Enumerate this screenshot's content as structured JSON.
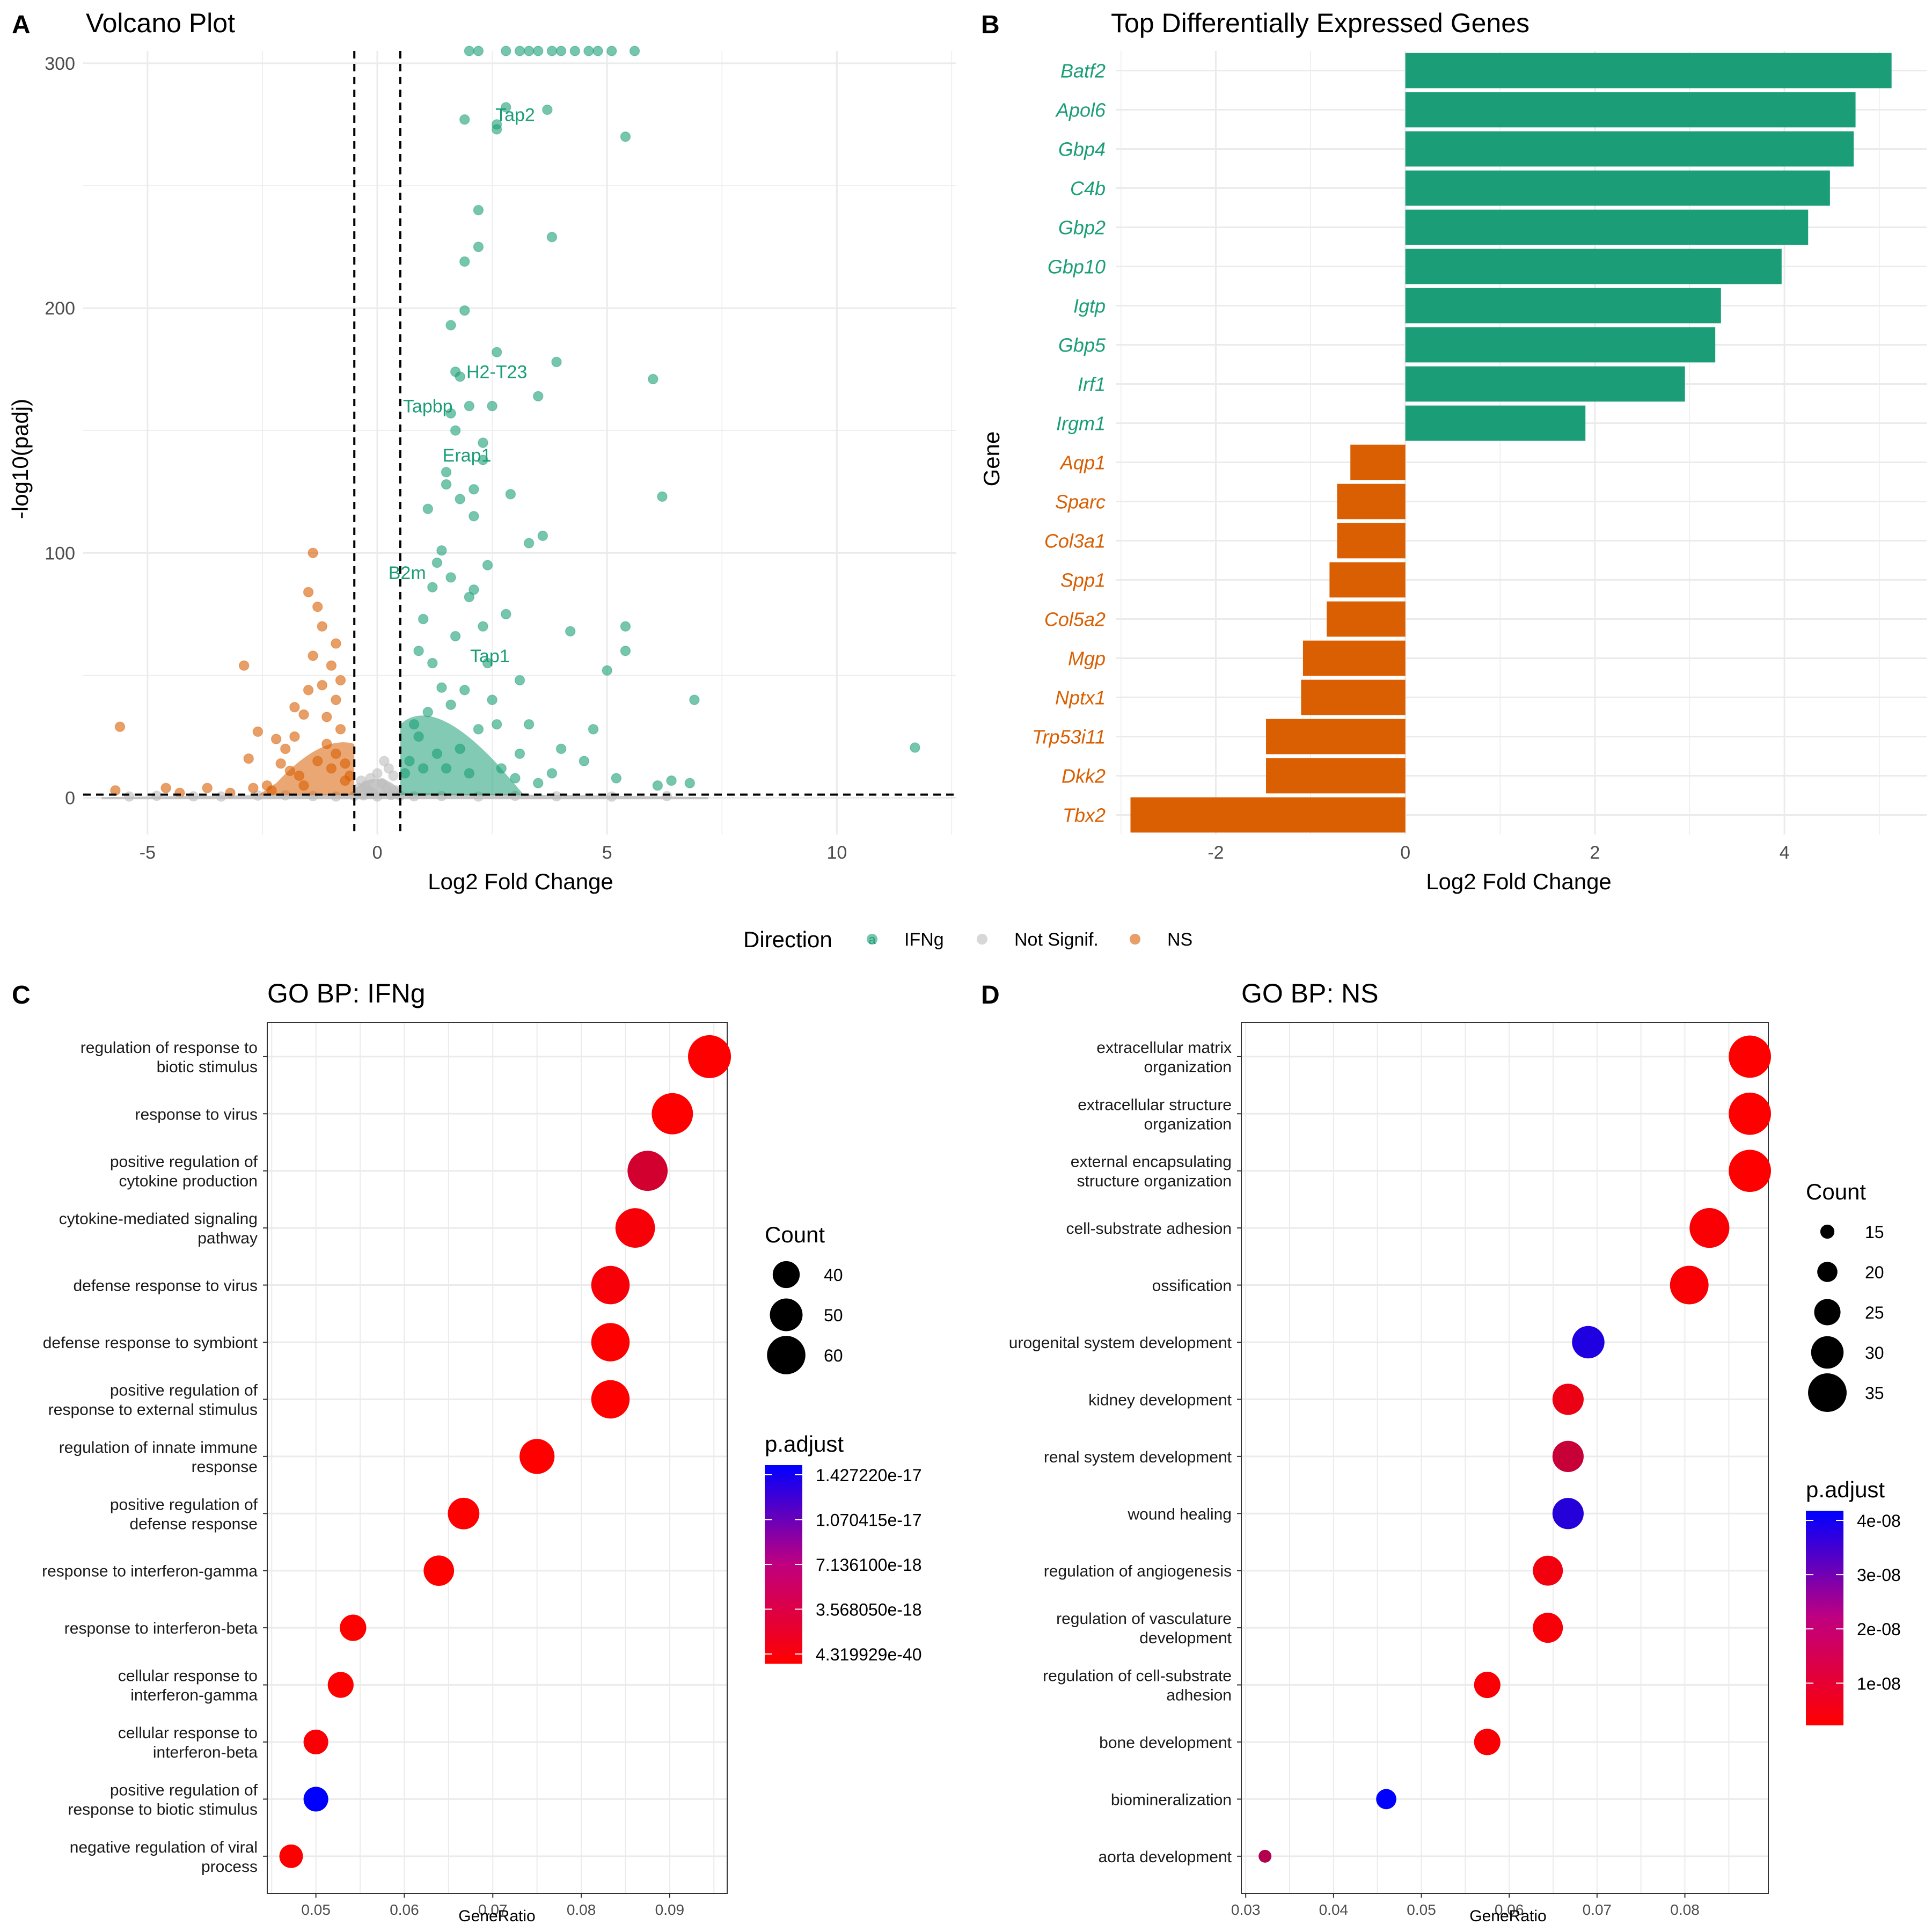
{
  "colors": {
    "ifng": "#1b9e77",
    "ns": "#d95f02",
    "not_signif": "#bdbdbd",
    "padj_low": "#ff0000",
    "padj_high": "#0000ff",
    "grid": "#ebebeb"
  },
  "panel_letters": [
    "A",
    "B",
    "C",
    "D"
  ],
  "legend_direction": {
    "title": "Direction",
    "entries": [
      {
        "label": "IFNg",
        "key_glyph": "a",
        "color": "#1b9e77"
      },
      {
        "label": "Not Signif.",
        "color": "#bdbdbd"
      },
      {
        "label": "NS",
        "color": "#d95f02"
      }
    ]
  },
  "chart_data": [
    {
      "type": "scatter",
      "title": "Volcano Plot",
      "xlabel": "Log2 Fold Change",
      "ylabel": "-log10(padj)",
      "xlim": [
        -6.4,
        12.6
      ],
      "ylim": [
        -15,
        305
      ],
      "x_ticks": [
        -5,
        0,
        5,
        10
      ],
      "y_ticks": [
        0,
        100,
        200,
        300
      ],
      "vlines": [
        -0.5,
        0.5
      ],
      "hline": 1.3,
      "grid": true,
      "series": [
        {
          "name": "IFNg",
          "points": [
            [
              11.7,
              20.5
            ],
            [
              6.9,
              40
            ],
            [
              6.2,
              123
            ],
            [
              6.0,
              171
            ],
            [
              5.4,
              270
            ],
            [
              5.4,
              60
            ],
            [
              5.4,
              70
            ],
            [
              5.0,
              52
            ],
            [
              4.2,
              68
            ],
            [
              3.9,
              178
            ],
            [
              3.8,
              229
            ],
            [
              3.7,
              281
            ],
            [
              3.6,
              107
            ],
            [
              3.5,
              164
            ],
            [
              3.3,
              104
            ],
            [
              3.1,
              48
            ],
            [
              2.9,
              124
            ],
            [
              2.8,
              282
            ],
            [
              2.6,
              275
            ],
            [
              2.6,
              273
            ],
            [
              2.6,
              182
            ],
            [
              2.5,
              160
            ],
            [
              2.4,
              95
            ],
            [
              2.3,
              145
            ],
            [
              2.2,
              225
            ],
            [
              2.2,
              240
            ],
            [
              2.1,
              126
            ],
            [
              2.0,
              82
            ],
            [
              1.9,
              277
            ],
            [
              1.9,
              219
            ],
            [
              1.9,
              199
            ],
            [
              1.8,
              122
            ],
            [
              1.7,
              174
            ],
            [
              1.6,
              193
            ],
            [
              1.6,
              157
            ],
            [
              1.5,
              133
            ],
            [
              1.4,
              101
            ],
            [
              1.3,
              96
            ],
            [
              1.2,
              86
            ],
            [
              1.1,
              118
            ],
            [
              1.0,
              73
            ],
            [
              0.9,
              60
            ],
            [
              1.8,
              172
            ],
            [
              2.0,
              160
            ],
            [
              2.3,
              138
            ],
            [
              1.7,
              150
            ],
            [
              2.1,
              115
            ],
            [
              1.5,
              128
            ],
            [
              2.3,
              70
            ],
            [
              2.8,
              75
            ],
            [
              3.3,
              30
            ],
            [
              4.0,
              20
            ],
            [
              4.5,
              15
            ],
            [
              4.7,
              28
            ],
            [
              5.2,
              8
            ],
            [
              6.1,
              5
            ],
            [
              6.4,
              7
            ],
            [
              6.8,
              6
            ],
            [
              3.0,
              8
            ],
            [
              3.5,
              6
            ],
            [
              2.7,
              12
            ],
            [
              1.2,
              55
            ],
            [
              1.4,
              45
            ],
            [
              1.6,
              38
            ],
            [
              1.1,
              35
            ],
            [
              0.8,
              30
            ],
            [
              0.9,
              25
            ],
            [
              1.3,
              18
            ],
            [
              1.5,
              12
            ],
            [
              1.8,
              20
            ],
            [
              2.0,
              10
            ],
            [
              2.2,
              28
            ],
            [
              2.5,
              40
            ],
            [
              0.7,
              15
            ],
            [
              0.6,
              10
            ],
            [
              1.0,
              12
            ],
            [
              1.9,
              44
            ],
            [
              2.4,
              55
            ],
            [
              2.6,
              30
            ],
            [
              3.1,
              18
            ],
            [
              3.8,
              10
            ],
            [
              1.7,
              66
            ],
            [
              2.1,
              85
            ],
            [
              1.6,
              90
            ],
            [
              2.0,
              305
            ],
            [
              2.2,
              305
            ],
            [
              2.8,
              305
            ],
            [
              3.1,
              305
            ],
            [
              3.3,
              305
            ],
            [
              3.5,
              305
            ],
            [
              3.8,
              305
            ],
            [
              4.0,
              305
            ],
            [
              4.3,
              305
            ],
            [
              4.6,
              305
            ],
            [
              4.8,
              305
            ],
            [
              5.1,
              305
            ],
            [
              5.6,
              305
            ]
          ]
        },
        {
          "name": "NS",
          "points": [
            [
              -5.6,
              29
            ],
            [
              -5.7,
              3
            ],
            [
              -4.6,
              4
            ],
            [
              -4.3,
              2
            ],
            [
              -3.7,
              4
            ],
            [
              -2.9,
              54
            ],
            [
              -2.8,
              16
            ],
            [
              -2.7,
              4
            ],
            [
              -2.6,
              27
            ],
            [
              -2.4,
              5
            ],
            [
              -2.2,
              24
            ],
            [
              -2.1,
              14
            ],
            [
              -2.0,
              20
            ],
            [
              -1.9,
              11
            ],
            [
              -1.8,
              25
            ],
            [
              -1.7,
              9
            ],
            [
              -1.6,
              34
            ],
            [
              -1.5,
              44
            ],
            [
              -1.5,
              84
            ],
            [
              -1.4,
              100
            ],
            [
              -1.3,
              78
            ],
            [
              -1.2,
              70
            ],
            [
              -1.1,
              33
            ],
            [
              -1.0,
              12
            ],
            [
              -0.9,
              18
            ],
            [
              -0.8,
              48
            ],
            [
              -0.7,
              7
            ],
            [
              -1.8,
              37
            ],
            [
              -1.4,
              58
            ],
            [
              -1.2,
              46
            ],
            [
              -0.9,
              40
            ],
            [
              -1.1,
              22
            ],
            [
              -0.8,
              28
            ],
            [
              -0.7,
              14
            ],
            [
              -0.6,
              9
            ],
            [
              -1.3,
              15
            ],
            [
              -1.6,
              5
            ],
            [
              -2.3,
              3
            ],
            [
              -3.2,
              2
            ],
            [
              -0.9,
              63
            ],
            [
              -1.0,
              54
            ]
          ]
        },
        {
          "name": "Not Signif.",
          "points": [
            [
              -5.4,
              0.5
            ],
            [
              -4.8,
              0.8
            ],
            [
              -4.0,
              0.6
            ],
            [
              -3.4,
              0.5
            ],
            [
              -2.6,
              0.9
            ],
            [
              -2.0,
              1.0
            ],
            [
              -1.4,
              0.7
            ],
            [
              -0.9,
              0.5
            ],
            [
              -0.5,
              0.8
            ],
            [
              -0.3,
              1.0
            ],
            [
              0.0,
              0.5
            ],
            [
              0.3,
              1.1
            ],
            [
              0.5,
              0.9
            ],
            [
              0.8,
              0.6
            ],
            [
              1.4,
              0.7
            ],
            [
              2.2,
              0.5
            ],
            [
              3.0,
              0.8
            ],
            [
              3.9,
              0.6
            ],
            [
              5.1,
              0.5
            ],
            [
              6.3,
              0.7
            ],
            [
              0.2,
              4
            ],
            [
              -0.2,
              3
            ],
            [
              0.1,
              6
            ],
            [
              -0.1,
              2
            ],
            [
              0.35,
              9
            ],
            [
              -0.35,
              7
            ],
            [
              0.0,
              10
            ],
            [
              0.25,
              12
            ],
            [
              -0.25,
              5
            ],
            [
              0.4,
              3
            ],
            [
              -0.4,
              4
            ],
            [
              0.15,
              15
            ],
            [
              -0.15,
              8
            ]
          ]
        }
      ],
      "annotations": [
        {
          "text": "Tap2",
          "x": 3.0,
          "y": 279
        },
        {
          "text": "H2-T23",
          "x": 2.6,
          "y": 174
        },
        {
          "text": "Tapbp",
          "x": 1.1,
          "y": 160
        },
        {
          "text": "Erap1",
          "x": 1.95,
          "y": 140
        },
        {
          "text": "B2m",
          "x": 0.65,
          "y": 92
        },
        {
          "text": "Tap1",
          "x": 2.45,
          "y": 58
        }
      ]
    },
    {
      "type": "bar",
      "title": "Top Differentially Expressed Genes",
      "xlabel": "Log2 Fold Change",
      "ylabel": "Gene",
      "xlim": [
        -3.05,
        5.5
      ],
      "x_ticks": [
        -2,
        0,
        2,
        4
      ],
      "categories": [
        "Batf2",
        "Apol6",
        "Gbp4",
        "C4b",
        "Gbp2",
        "Gbp10",
        "Igtp",
        "Gbp5",
        "Irf1",
        "Irgm1",
        "Aqp1",
        "Sparc",
        "Col3a1",
        "Spp1",
        "Col5a2",
        "Mgp",
        "Nptx1",
        "Trp53i11",
        "Dkk2",
        "Tbx2"
      ],
      "values": [
        5.13,
        4.75,
        4.73,
        4.48,
        4.25,
        3.97,
        3.33,
        3.27,
        2.95,
        1.9,
        -0.58,
        -0.72,
        -0.72,
        -0.8,
        -0.83,
        -1.08,
        -1.1,
        -1.47,
        -1.47,
        -2.9
      ],
      "groups": [
        "IFNg",
        "IFNg",
        "IFNg",
        "IFNg",
        "IFNg",
        "IFNg",
        "IFNg",
        "IFNg",
        "IFNg",
        "IFNg",
        "NS",
        "NS",
        "NS",
        "NS",
        "NS",
        "NS",
        "NS",
        "NS",
        "NS",
        "NS"
      ]
    },
    {
      "type": "scatter",
      "title": "GO BP: IFNg",
      "xlabel": "GeneRatio",
      "xlim": [
        0.0445,
        0.0965
      ],
      "x_ticks": [
        0.05,
        0.06,
        0.07,
        0.08,
        0.09
      ],
      "x_tick_labels": [
        "0.05",
        "0.06",
        "0.07",
        "0.08",
        "0.09"
      ],
      "categories": [
        [
          "regulation of response to",
          "biotic stimulus"
        ],
        [
          "response to virus"
        ],
        [
          "positive regulation of",
          "cytokine production"
        ],
        [
          "cytokine-mediated signaling",
          "pathway"
        ],
        [
          "defense response to virus"
        ],
        [
          "defense response to symbiont"
        ],
        [
          "positive regulation of",
          "response to external stimulus"
        ],
        [
          "regulation of innate immune",
          "response"
        ],
        [
          "positive regulation of",
          "defense response"
        ],
        [
          "response to interferon-gamma"
        ],
        [
          "response to interferon-beta"
        ],
        [
          "cellular response to",
          "interferon-gamma"
        ],
        [
          "cellular response to",
          "interferon-beta"
        ],
        [
          "positive regulation of",
          "response to biotic stimulus"
        ],
        [
          "negative regulation of viral",
          "process"
        ]
      ],
      "gene_ratio": [
        0.0945,
        0.0903,
        0.0875,
        0.0861,
        0.0833,
        0.0833,
        0.0833,
        0.075,
        0.0667,
        0.0639,
        0.0542,
        0.0528,
        0.05,
        0.05,
        0.0472
      ],
      "count": [
        68,
        65,
        63,
        62,
        60,
        60,
        60,
        54,
        48,
        46,
        39,
        38,
        36,
        36,
        34
      ],
      "p_adjust_color": [
        0.0,
        0.0,
        0.18,
        0.03,
        0.03,
        0.0,
        0.0,
        0.0,
        0.0,
        0.0,
        0.0,
        0.0,
        0.02,
        1.0,
        0.0
      ],
      "size_legend": {
        "title": "Count",
        "labels": [
          "40",
          "50",
          "60"
        ],
        "values": [
          40,
          50,
          60
        ]
      },
      "color_legend": {
        "title": "p.adjust",
        "labels": [
          "1.427220e-17",
          "1.070415e-17",
          "7.136100e-18",
          "3.568050e-18",
          "4.319929e-40"
        ]
      }
    },
    {
      "type": "scatter",
      "title": "GO BP: NS",
      "xlabel": "GeneRatio",
      "xlim": [
        0.0295,
        0.0895
      ],
      "x_ticks": [
        0.03,
        0.04,
        0.05,
        0.06,
        0.07,
        0.08
      ],
      "x_tick_labels": [
        "0.03",
        "0.04",
        "0.05",
        "0.06",
        "0.07",
        "0.08"
      ],
      "categories": [
        [
          "extracellular matrix",
          "organization"
        ],
        [
          "extracellular structure",
          "organization"
        ],
        [
          "external encapsulating",
          "structure organization"
        ],
        [
          "cell-substrate adhesion"
        ],
        [
          "ossification"
        ],
        [
          "urogenital system development"
        ],
        [
          "kidney development"
        ],
        [
          "renal system development"
        ],
        [
          "wound healing"
        ],
        [
          "regulation of angiogenesis"
        ],
        [
          "regulation of vasculature",
          "development"
        ],
        [
          "regulation of cell-substrate",
          "adhesion"
        ],
        [
          "bone development"
        ],
        [
          "biomineralization"
        ],
        [
          "aorta development"
        ]
      ],
      "gene_ratio": [
        0.0874,
        0.0874,
        0.0874,
        0.0828,
        0.0805,
        0.069,
        0.0667,
        0.0667,
        0.0667,
        0.0644,
        0.0644,
        0.0575,
        0.0575,
        0.046,
        0.0322
      ],
      "count": [
        38,
        38,
        38,
        36,
        35,
        30,
        29,
        29,
        29,
        28,
        28,
        25,
        25,
        20,
        14
      ],
      "p_adjust_color": [
        0.0,
        0.0,
        0.0,
        0.02,
        0.02,
        0.88,
        0.08,
        0.22,
        0.85,
        0.05,
        0.03,
        0.02,
        0.02,
        1.0,
        0.3
      ],
      "size_legend": {
        "title": "Count",
        "labels": [
          "15",
          "20",
          "25",
          "30",
          "35"
        ],
        "values": [
          15,
          20,
          25,
          30,
          35
        ]
      },
      "color_legend": {
        "title": "p.adjust",
        "labels": [
          "4e-08",
          "3e-08",
          "2e-08",
          "1e-08"
        ]
      }
    }
  ]
}
